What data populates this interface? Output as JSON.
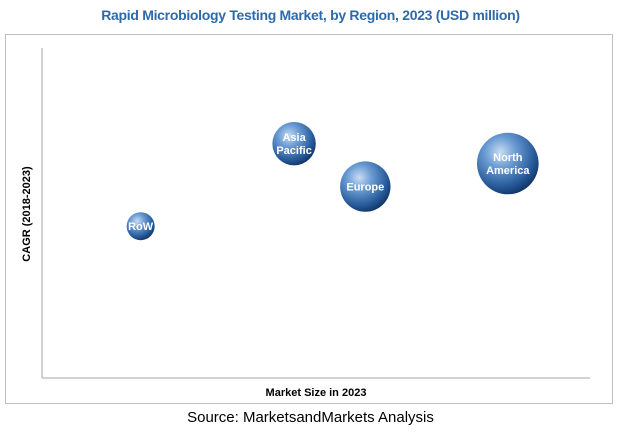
{
  "chart_data": {
    "type": "scatter",
    "title": "Rapid Microbiology Testing Market, by Region, 2023 (USD million)",
    "xlabel": "Market Size in 2023",
    "ylabel": "CAGR (2018-2023)",
    "grid": false,
    "legend": "none",
    "points": [
      {
        "label": "RoW",
        "x": 1.8,
        "y": 4.6,
        "size": 1.0
      },
      {
        "label": "Asia Pacific",
        "x": 4.6,
        "y": 7.1,
        "size": 1.55
      },
      {
        "label": "Europe",
        "x": 5.9,
        "y": 5.8,
        "size": 1.8
      },
      {
        "label": "North America",
        "x": 8.5,
        "y": 6.5,
        "size": 2.2
      }
    ],
    "xlim": [
      0,
      10
    ],
    "ylim": [
      0,
      10
    ]
  },
  "source": "Source: MarketsandMarkets Analysis",
  "colors": {
    "title": "#2e6aa8",
    "bubble_light": "#b9d2ee",
    "bubble_mid": "#3f76b7",
    "bubble_dark": "#0f3466",
    "axis": "#a6a6a6"
  }
}
